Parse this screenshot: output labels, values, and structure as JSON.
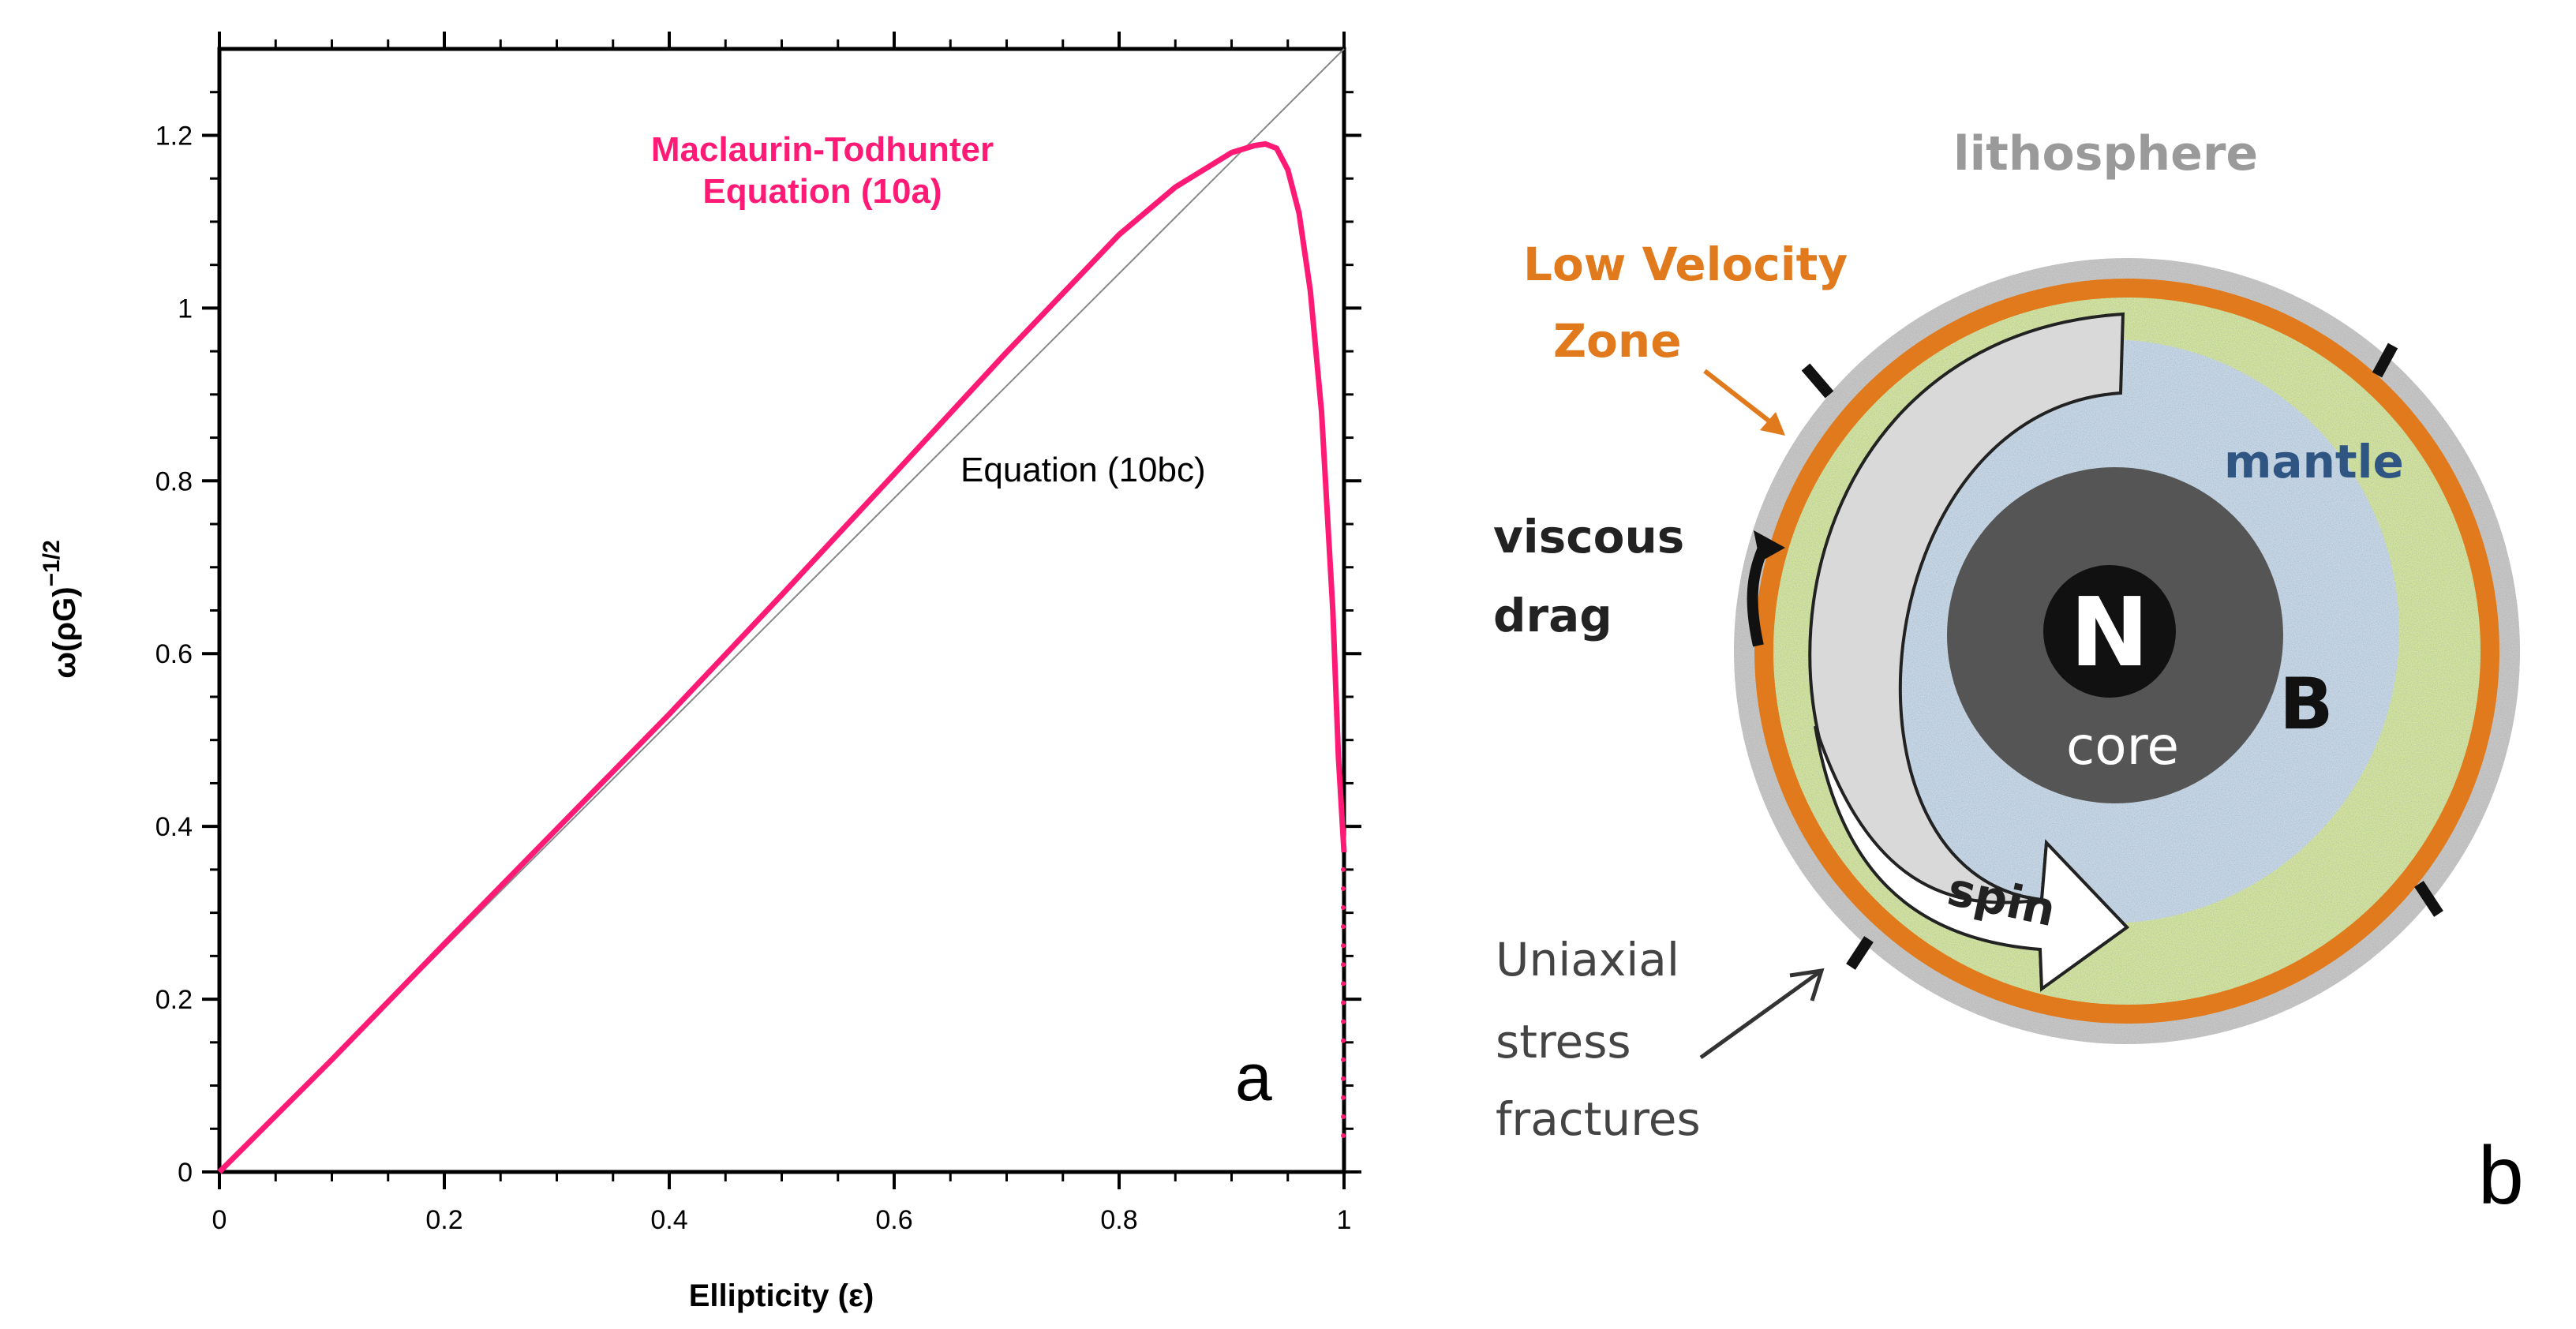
{
  "chart_data": {
    "type": "line",
    "xlabel": "Ellipticity (ε)",
    "ylabel_main": "ω(ρG)",
    "ylabel_exp": "−1/2",
    "xlim": [
      0,
      1
    ],
    "ylim": [
      0,
      1.3
    ],
    "x_ticks": [
      0,
      0.2,
      0.4,
      0.6,
      0.8,
      1
    ],
    "x_tick_labels": [
      "0",
      "0.2",
      "0.4",
      "0.6",
      "0.8",
      "1"
    ],
    "y_ticks": [
      0,
      0.2,
      0.4,
      0.6,
      0.8,
      1,
      1.2
    ],
    "y_tick_labels": [
      "0",
      "0.2",
      "0.4",
      "0.6",
      "0.8",
      "1",
      "1.2"
    ],
    "grid": false,
    "series": [
      {
        "name": "Maclaurin-Todhunter Equation (10a)",
        "label_lines": [
          "Maclaurin-Todhunter",
          "Equation (10a)"
        ],
        "color": "#ff1a75",
        "x": [
          0,
          0.1,
          0.2,
          0.3,
          0.4,
          0.5,
          0.6,
          0.7,
          0.8,
          0.85,
          0.9,
          0.92,
          0.93,
          0.94,
          0.95,
          0.96,
          0.97,
          0.98,
          0.99,
          0.995,
          1.0
        ],
        "y": [
          0,
          0.13,
          0.264,
          0.397,
          0.53,
          0.668,
          0.808,
          0.949,
          1.085,
          1.14,
          1.18,
          1.188,
          1.19,
          1.185,
          1.16,
          1.11,
          1.02,
          0.88,
          0.65,
          0.48,
          0.37
        ]
      },
      {
        "name": "Equation (10bc)",
        "label_lines": [
          "Equation (10bc)"
        ],
        "color": "#888888",
        "x": [
          0,
          1
        ],
        "y": [
          0,
          1.3
        ]
      }
    ],
    "annotations": [
      "a"
    ]
  },
  "panel_b": {
    "labels": {
      "lithosphere": "lithosphere",
      "lvz_line1": "Low Velocity",
      "lvz_line2": "Zone",
      "mantle": "mantle",
      "viscous_line1": "viscous",
      "viscous_line2": "drag",
      "core_letter": "N",
      "core": "core",
      "field_letter": "B",
      "spin": "spin",
      "fractures_line1": "Uniaxial",
      "fractures_line2": "stress",
      "fractures_line3": "fractures",
      "panel_letter": "b"
    },
    "colors": {
      "lithosphere": "#c9c9c9",
      "low_velocity_zone": "#e07a1c",
      "asthenosphere": "#d5ea9a",
      "mantle": "#c7dcef",
      "core": "#555555",
      "arrow_fill": "#d9d9d9"
    }
  }
}
